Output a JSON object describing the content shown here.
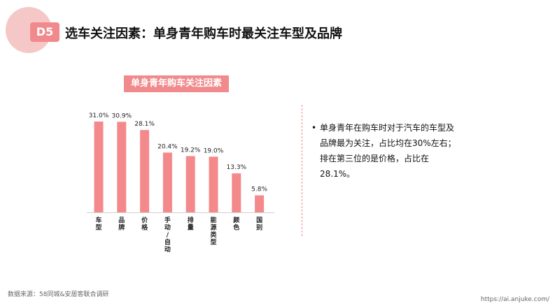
{
  "header": {
    "badge": "D5",
    "title": "选车关注因素：单身青年购车时最关注车型及品牌"
  },
  "insight": {
    "bullet": "•",
    "text": "单身青年在购车时对于汽车的车型及品牌最为关注，占比均在30%左右；排在第三位的是价格，占比在28.1%。"
  },
  "footer": {
    "source": "数据来源：58同城&安居客联合调研",
    "url": "https://ai.anjuke.com/"
  },
  "colors": {
    "accent": "#f08a8c",
    "bar": "#f4898b",
    "deco": "#f6c7c7"
  },
  "chart_data": {
    "type": "bar",
    "title": "单身青年购车关注因素",
    "categories": [
      "车型",
      "品牌",
      "价格",
      "手动/自动",
      "排量",
      "能源类型",
      "颜色",
      "国别"
    ],
    "values": [
      31.0,
      30.9,
      28.1,
      20.4,
      19.2,
      19.0,
      13.3,
      5.8
    ],
    "value_labels": [
      "31.0%",
      "30.9%",
      "28.1%",
      "20.4%",
      "19.2%",
      "19.0%",
      "13.3%",
      "5.8%"
    ],
    "ylim": [
      0,
      31
    ],
    "grid": false,
    "legend": "none"
  }
}
